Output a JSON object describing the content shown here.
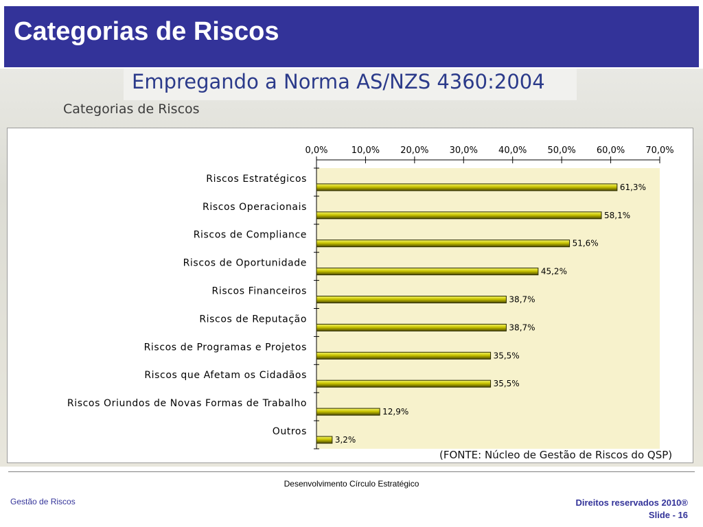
{
  "slide": {
    "title": "Categorias de Riscos",
    "heading": "Empregando a Norma AS/NZS 4360:2004",
    "subheading": "Categorias de Riscos",
    "source": "(FONTE: Núcleo de Gestão de Riscos do QSP)"
  },
  "footer": {
    "center": "Desenvolvimento Círculo Estratégico",
    "left": "Gestão de Riscos",
    "rights": "Direitos reservados 2010®",
    "slide_number": "Slide - 16"
  },
  "colors": {
    "title_bar": "#333399",
    "bar_fill": "#b8b800",
    "plot_area": "#f7f2cc"
  },
  "chart_data": {
    "type": "bar",
    "orientation": "horizontal",
    "categories": [
      "Riscos Estratégicos",
      "Riscos Operacionais",
      "Riscos de Compliance",
      "Riscos de Oportunidade",
      "Riscos Financeiros",
      "Riscos de Reputação",
      "Riscos de Programas e Projetos",
      "Riscos que Afetam os Cidadãos",
      "Riscos Oriundos de Novas Formas de Trabalho",
      "Outros"
    ],
    "values": [
      61.3,
      58.1,
      51.6,
      45.2,
      38.7,
      38.7,
      35.5,
      35.5,
      12.9,
      3.2
    ],
    "value_labels": [
      "61,3%",
      "58,1%",
      "51,6%",
      "45,2%",
      "38,7%",
      "38,7%",
      "35,5%",
      "35,5%",
      "12,9%",
      "3,2%"
    ],
    "x_ticks": [
      0,
      10,
      20,
      30,
      40,
      50,
      60,
      70
    ],
    "x_tick_labels": [
      "0,0%",
      "10,0%",
      "20,0%",
      "30,0%",
      "40,0%",
      "50,0%",
      "60,0%",
      "70,0%"
    ],
    "xlim": [
      0,
      70
    ],
    "x_axis_position": "top",
    "grid": false,
    "legend": "none"
  }
}
